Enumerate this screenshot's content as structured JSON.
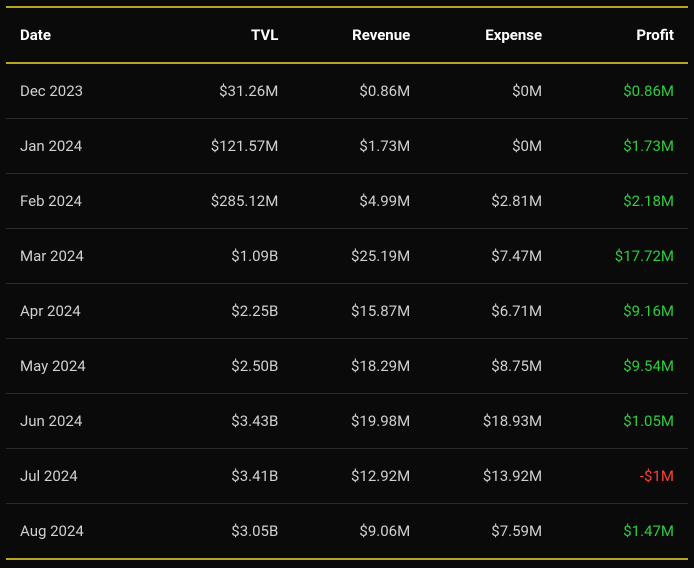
{
  "table": {
    "type": "table",
    "background_color": "#0a0a0a",
    "border_color_accent": "#b8a523",
    "row_divider_color": "#2a2a2a",
    "text_color": "#d0d0d0",
    "header_text_color": "#ffffff",
    "profit_positive_color": "#2ecc40",
    "profit_negative_color": "#ff4136",
    "header_fontsize": 15,
    "cell_fontsize": 15,
    "columns": [
      {
        "key": "date",
        "label": "Date",
        "align": "left"
      },
      {
        "key": "tvl",
        "label": "TVL",
        "align": "right"
      },
      {
        "key": "revenue",
        "label": "Revenue",
        "align": "right"
      },
      {
        "key": "expense",
        "label": "Expense",
        "align": "right"
      },
      {
        "key": "profit",
        "label": "Profit",
        "align": "right"
      }
    ],
    "rows": [
      {
        "date": "Dec 2023",
        "tvl": "$31.26M",
        "revenue": "$0.86M",
        "expense": "$0M",
        "profit": "$0.86M",
        "profit_sign": "positive"
      },
      {
        "date": "Jan 2024",
        "tvl": "$121.57M",
        "revenue": "$1.73M",
        "expense": "$0M",
        "profit": "$1.73M",
        "profit_sign": "positive"
      },
      {
        "date": "Feb 2024",
        "tvl": "$285.12M",
        "revenue": "$4.99M",
        "expense": "$2.81M",
        "profit": "$2.18M",
        "profit_sign": "positive"
      },
      {
        "date": "Mar 2024",
        "tvl": "$1.09B",
        "revenue": "$25.19M",
        "expense": "$7.47M",
        "profit": "$17.72M",
        "profit_sign": "positive"
      },
      {
        "date": "Apr 2024",
        "tvl": "$2.25B",
        "revenue": "$15.87M",
        "expense": "$6.71M",
        "profit": "$9.16M",
        "profit_sign": "positive"
      },
      {
        "date": "May 2024",
        "tvl": "$2.50B",
        "revenue": "$18.29M",
        "expense": "$8.75M",
        "profit": "$9.54M",
        "profit_sign": "positive"
      },
      {
        "date": "Jun 2024",
        "tvl": "$3.43B",
        "revenue": "$19.98M",
        "expense": "$18.93M",
        "profit": "$1.05M",
        "profit_sign": "positive"
      },
      {
        "date": "Jul 2024",
        "tvl": "$3.41B",
        "revenue": "$12.92M",
        "expense": "$13.92M",
        "profit": "-$1M",
        "profit_sign": "negative"
      },
      {
        "date": "Aug 2024",
        "tvl": "$3.05B",
        "revenue": "$9.06M",
        "expense": "$7.59M",
        "profit": "$1.47M",
        "profit_sign": "positive"
      }
    ]
  }
}
